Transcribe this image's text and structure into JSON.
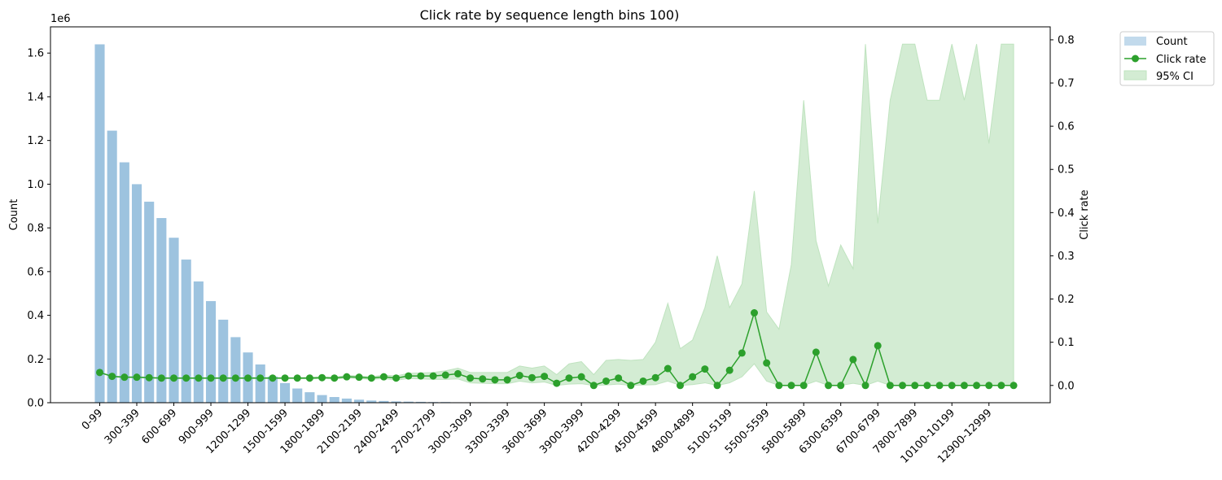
{
  "chart_data": {
    "type": "bar",
    "title": "Click rate by sequence length bins 100)",
    "xlabel": "",
    "y_left_label": "Count",
    "y_left_scale_label": "1e6",
    "y_left_lim": [
      0,
      1.72
    ],
    "y_left_ticks": [
      "0.0",
      "0.2",
      "0.4",
      "0.6",
      "0.8",
      "1.0",
      "1.2",
      "1.4",
      "1.6"
    ],
    "y_right_label": "Click rate",
    "y_right_lim": [
      -0.04,
      0.83
    ],
    "y_right_ticks": [
      "0.0",
      "0.1",
      "0.2",
      "0.3",
      "0.4",
      "0.5",
      "0.6",
      "0.7",
      "0.8"
    ],
    "x_tick_labels": [
      "0-99",
      "300-399",
      "600-699",
      "900-999",
      "1200-1299",
      "1500-1599",
      "1800-1899",
      "2100-2199",
      "2400-2499",
      "2700-2799",
      "3000-3099",
      "3300-3399",
      "3600-3699",
      "3900-3999",
      "4200-4299",
      "4500-4599",
      "4800-4899",
      "5100-5199",
      "5500-5599",
      "5800-5899",
      "6300-6399",
      "6700-6799",
      "7800-7899",
      "10100-10199",
      "12900-12999"
    ],
    "grid": false,
    "legend_position": "outside-top-right",
    "colors": {
      "count": "#9dc3df",
      "click_rate": "#2ca02c",
      "ci": "#d3ecd3",
      "ci_edge": "#bfe3bf"
    },
    "series": [
      {
        "name": "Count",
        "kind": "bar",
        "values": [
          1.64,
          1.245,
          1.1,
          1.0,
          0.92,
          0.845,
          0.755,
          0.655,
          0.555,
          0.465,
          0.38,
          0.3,
          0.23,
          0.175,
          0.12,
          0.09,
          0.065,
          0.048,
          0.035,
          0.026,
          0.019,
          0.014,
          0.01,
          0.008,
          0.006,
          0.005,
          0.004,
          0.003,
          0.003,
          0.002,
          0.002,
          0.002,
          0.0015,
          0.0015,
          0.001,
          0.001,
          0.001,
          0.001,
          0.001,
          0.001,
          0.001,
          0.001,
          0.001,
          0.001,
          0.001,
          0.001,
          0.001,
          0.001,
          0.001,
          0.001,
          0.001,
          0.001,
          0.001,
          0.001,
          0.001,
          0.001,
          0.001,
          0.001,
          0.001,
          0.001,
          0.001,
          0.001,
          0.001,
          0.001,
          0.001,
          0.001,
          0.001,
          0.001,
          0.001,
          0.001,
          0.001,
          0.001,
          0.001,
          0.001,
          0.001
        ]
      },
      {
        "name": "Click rate",
        "kind": "line",
        "values": [
          0.03,
          0.021,
          0.019,
          0.019,
          0.018,
          0.017,
          0.017,
          0.017,
          0.017,
          0.017,
          0.017,
          0.017,
          0.017,
          0.017,
          0.017,
          0.017,
          0.017,
          0.017,
          0.018,
          0.017,
          0.02,
          0.019,
          0.017,
          0.02,
          0.017,
          0.022,
          0.022,
          0.022,
          0.024,
          0.027,
          0.017,
          0.015,
          0.013,
          0.013,
          0.023,
          0.018,
          0.021,
          0.005,
          0.017,
          0.02,
          0.0,
          0.01,
          0.017,
          0.0,
          0.01,
          0.018,
          0.039,
          0.0,
          0.02,
          0.038,
          0.0,
          0.035,
          0.075,
          0.168,
          0.052,
          0.0,
          0.0,
          0.0,
          0.077,
          0.0,
          0.0,
          0.06,
          0.0,
          0.092,
          0.0,
          0.0,
          0.0,
          0.0,
          0.0,
          0.0,
          0.0,
          0.0,
          0.0,
          0.0,
          0.0
        ]
      },
      {
        "name": "95% CI",
        "kind": "band",
        "lower": [
          0.029,
          0.02,
          0.018,
          0.018,
          0.017,
          0.016,
          0.016,
          0.016,
          0.016,
          0.016,
          0.016,
          0.016,
          0.016,
          0.016,
          0.016,
          0.016,
          0.016,
          0.015,
          0.016,
          0.015,
          0.017,
          0.016,
          0.014,
          0.016,
          0.012,
          0.016,
          0.015,
          0.014,
          0.014,
          0.015,
          0.006,
          0.005,
          0.004,
          0.004,
          0.01,
          0.006,
          0.008,
          0.0,
          0.003,
          0.004,
          0.0,
          0.001,
          0.003,
          0.0,
          0.001,
          0.002,
          0.01,
          0.0,
          0.002,
          0.006,
          0.0,
          0.006,
          0.02,
          0.05,
          0.01,
          0.0,
          0.0,
          0.0,
          0.01,
          0.0,
          0.0,
          0.005,
          0.0,
          0.01,
          0.0,
          0.0,
          0.0,
          0.0,
          0.0,
          0.0,
          0.0,
          0.0,
          0.0,
          0.0,
          0.0
        ],
        "upper": [
          0.031,
          0.022,
          0.02,
          0.02,
          0.019,
          0.018,
          0.018,
          0.018,
          0.018,
          0.018,
          0.018,
          0.018,
          0.018,
          0.019,
          0.018,
          0.018,
          0.018,
          0.019,
          0.02,
          0.019,
          0.023,
          0.022,
          0.02,
          0.024,
          0.022,
          0.028,
          0.029,
          0.03,
          0.034,
          0.04,
          0.03,
          0.03,
          0.03,
          0.03,
          0.045,
          0.04,
          0.045,
          0.025,
          0.05,
          0.055,
          0.025,
          0.058,
          0.06,
          0.058,
          0.06,
          0.1,
          0.19,
          0.085,
          0.105,
          0.18,
          0.3,
          0.18,
          0.235,
          0.45,
          0.17,
          0.13,
          0.28,
          0.66,
          0.335,
          0.23,
          0.325,
          0.27,
          0.79,
          0.375,
          0.66,
          0.79,
          0.79,
          0.66,
          0.66,
          0.79,
          0.66,
          0.79,
          0.56,
          0.79,
          0.79
        ]
      }
    ]
  }
}
